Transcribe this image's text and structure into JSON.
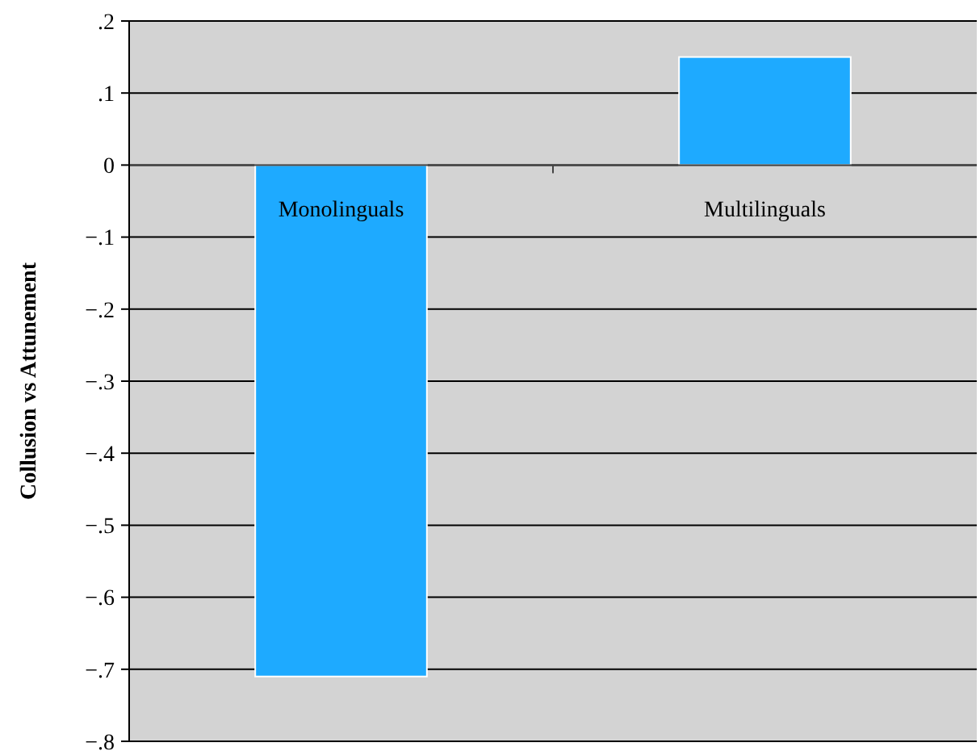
{
  "chart_data": {
    "type": "bar",
    "ylabel": "Collusion vs Attunement",
    "categories": [
      "Monolinguals",
      "Multilinguals"
    ],
    "values": [
      -0.71,
      0.15
    ],
    "color": "#1eaaff",
    "ylim": [
      -0.8,
      0.2
    ],
    "yticks": [
      {
        "value": 0.2,
        "label": ".2"
      },
      {
        "value": 0.1,
        "label": ".1"
      },
      0,
      {
        "value": -0.1,
        "label": "−.1"
      },
      {
        "value": -0.2,
        "label": "−.2"
      },
      {
        "value": -0.3,
        "label": "−.3"
      },
      {
        "value": -0.4,
        "label": "−.4"
      },
      {
        "value": -0.5,
        "label": "−.5"
      },
      {
        "value": -0.6,
        "label": "−.6"
      },
      {
        "value": -0.7,
        "label": "−.7"
      },
      {
        "value": -0.8,
        "label": "−.8"
      }
    ],
    "grid": "y"
  }
}
